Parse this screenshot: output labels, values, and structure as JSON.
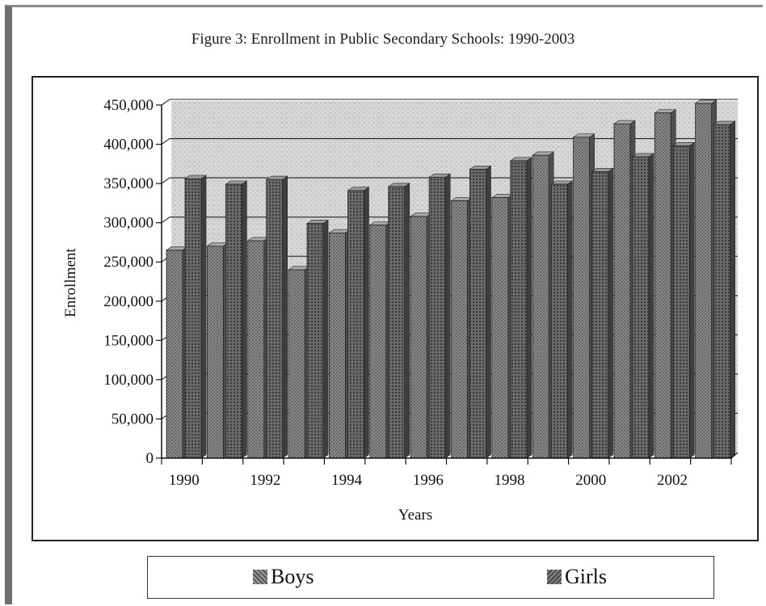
{
  "chart_data": {
    "type": "bar",
    "title": "Figure 3: Enrollment in Public Secondary Schools: 1990-2003",
    "xlabel": "Years",
    "ylabel": "Enrollment",
    "categories": [
      "1990",
      "1991",
      "1992",
      "1993",
      "1994",
      "1995",
      "1996",
      "1997",
      "1998",
      "1999",
      "2000",
      "2001",
      "2002",
      "2003"
    ],
    "x_tick_labels": [
      "1990",
      "1992",
      "1994",
      "1996",
      "1998",
      "2000",
      "2002"
    ],
    "y_tick_labels": [
      "0",
      "50,000",
      "100,000",
      "150,000",
      "200,000",
      "250,000",
      "300,000",
      "350,000",
      "400,000",
      "450,000"
    ],
    "ylim": [
      0,
      450000
    ],
    "grid": true,
    "legend_position": "bottom",
    "series": [
      {
        "name": "Boys",
        "color": "#6f6f6f",
        "values": [
          265000,
          270000,
          277000,
          240000,
          287000,
          297000,
          308000,
          328000,
          332000,
          386000,
          409000,
          426000,
          440000,
          452000
        ]
      },
      {
        "name": "Girls",
        "color": "#5a5a5a",
        "values": [
          356000,
          349000,
          355000,
          299000,
          341000,
          346000,
          358000,
          368000,
          379000,
          349000,
          365000,
          384000,
          398000,
          425000
        ]
      }
    ]
  }
}
